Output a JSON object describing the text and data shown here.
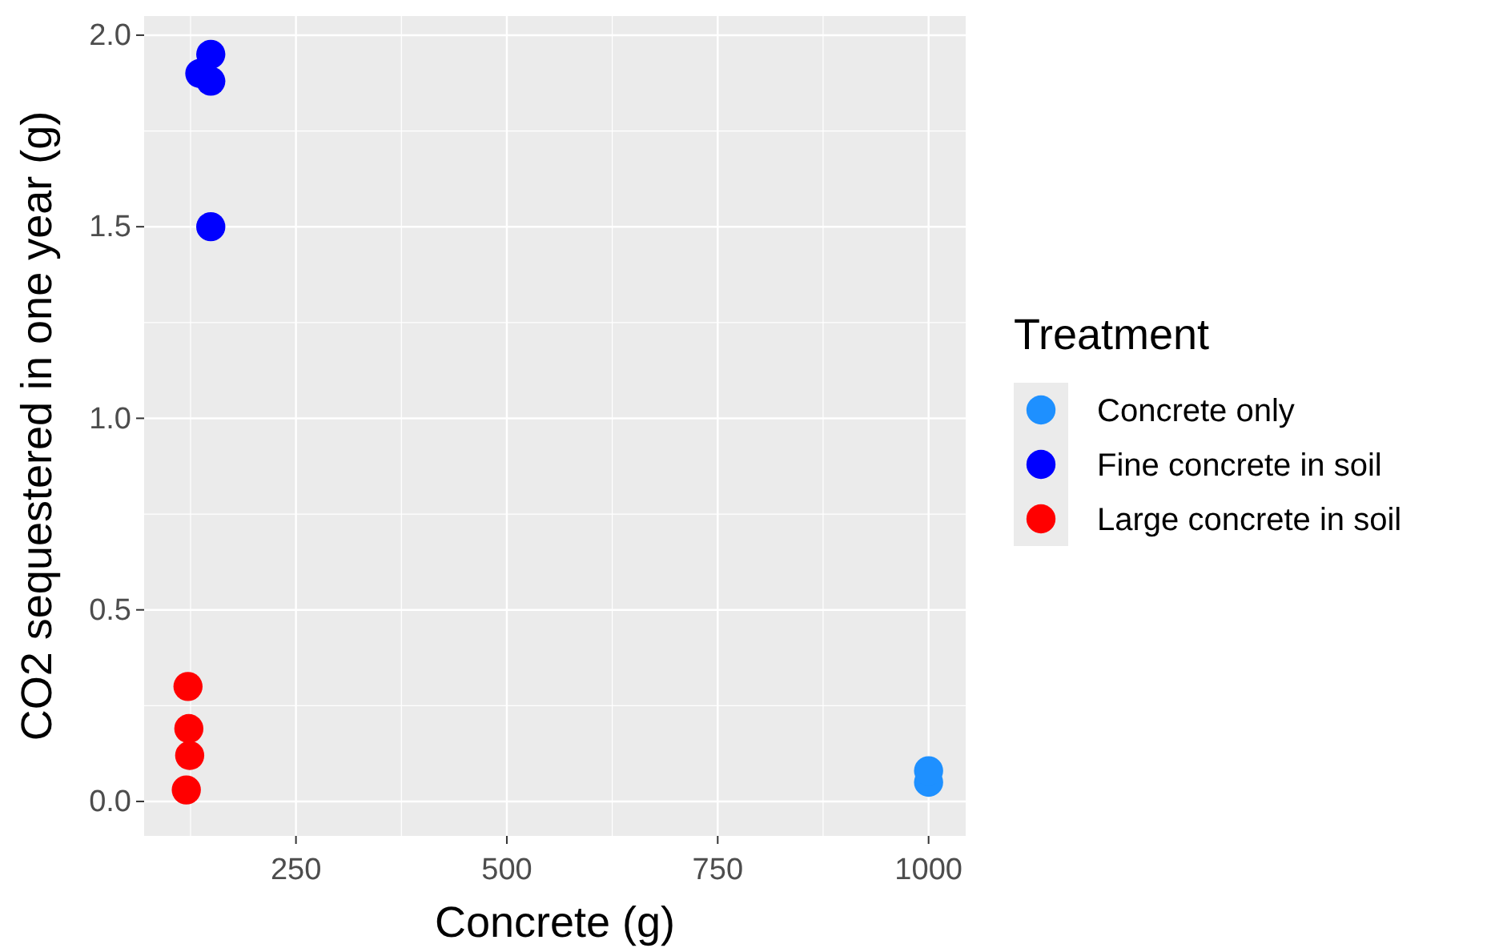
{
  "chart_data": {
    "type": "scatter",
    "xlabel": "Concrete (g)",
    "ylabel": "CO2 sequestered in one year (g)",
    "legend_title": "Treatment",
    "series": [
      {
        "name": "Concrete only",
        "color": "#1e90ff",
        "x": [
          1000,
          1000
        ],
        "values": [
          0.05,
          0.08
        ]
      },
      {
        "name": "Fine concrete in soil",
        "color": "#0000ff",
        "x": [
          149,
          136,
          149,
          149
        ],
        "values": [
          1.95,
          1.9,
          1.88,
          1.5
        ]
      },
      {
        "name": "Large concrete in soil",
        "color": "#ff0000",
        "x": [
          122,
          123,
          124,
          120
        ],
        "values": [
          0.3,
          0.19,
          0.12,
          0.03
        ]
      }
    ],
    "xlim": [
      70,
      1044
    ],
    "ylim": [
      -0.09,
      2.05
    ],
    "xticks": [
      250,
      500,
      750,
      1000
    ],
    "yticks": [
      {
        "value": 0,
        "label": "0.0"
      },
      0.5,
      {
        "value": 1,
        "label": "1.0"
      },
      1.5,
      {
        "value": 2,
        "label": "2.0"
      }
    ],
    "grid": true,
    "legend": "right",
    "marker": "circle"
  }
}
